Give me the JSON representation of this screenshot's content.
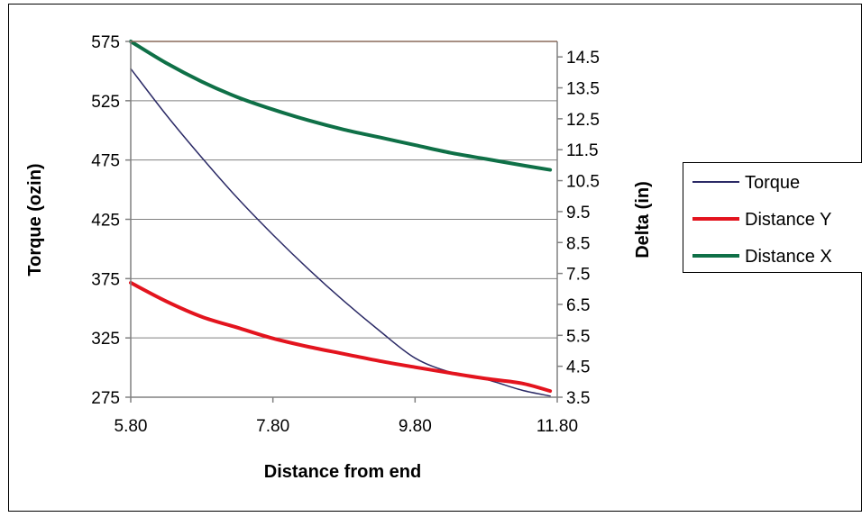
{
  "chart_data": {
    "type": "line",
    "title": "",
    "xlabel": "Distance from end",
    "ylabel": "Torque (ozin)",
    "y2label": "Delta (in)",
    "xlim": [
      5.8,
      11.8
    ],
    "ylim": [
      275,
      575
    ],
    "y2lim": [
      3.5,
      15.0
    ],
    "xticks": [
      "5.80",
      "7.80",
      "9.80",
      "11.80"
    ],
    "yticks": [
      "275",
      "325",
      "375",
      "425",
      "475",
      "525",
      "575"
    ],
    "y2ticks": [
      "3.5",
      "4.5",
      "5.5",
      "6.5",
      "7.5",
      "8.5",
      "9.5",
      "10.5",
      "11.5",
      "12.5",
      "13.5",
      "14.5"
    ],
    "grid": "horizontal",
    "legend": "right",
    "series": [
      {
        "name": "Torque",
        "axis": "left",
        "color": "#2b2a66",
        "x": [
          5.8,
          6.3,
          6.8,
          7.3,
          7.8,
          8.3,
          8.8,
          9.3,
          9.8,
          10.3,
          10.8,
          11.3,
          11.7
        ],
        "values": [
          552,
          513,
          477,
          443,
          412,
          383,
          356,
          331,
          308,
          296,
          290,
          281,
          276
        ]
      },
      {
        "name": "Distance Y",
        "axis": "right",
        "color": "#e3141e",
        "x": [
          5.8,
          6.3,
          6.8,
          7.3,
          7.8,
          8.3,
          8.8,
          9.3,
          9.8,
          10.3,
          10.8,
          11.3,
          11.7
        ],
        "values": [
          7.2,
          6.6,
          6.1,
          5.75,
          5.4,
          5.13,
          4.9,
          4.67,
          4.47,
          4.28,
          4.1,
          3.95,
          3.7
        ]
      },
      {
        "name": "Distance X",
        "axis": "right",
        "color": "#0f7047",
        "x": [
          5.8,
          6.3,
          6.8,
          7.3,
          7.8,
          8.3,
          8.8,
          9.3,
          9.8,
          10.3,
          10.8,
          11.3,
          11.7
        ],
        "values": [
          15.0,
          14.3,
          13.7,
          13.2,
          12.8,
          12.45,
          12.15,
          11.9,
          11.65,
          11.4,
          11.2,
          11.0,
          10.85
        ]
      }
    ]
  }
}
